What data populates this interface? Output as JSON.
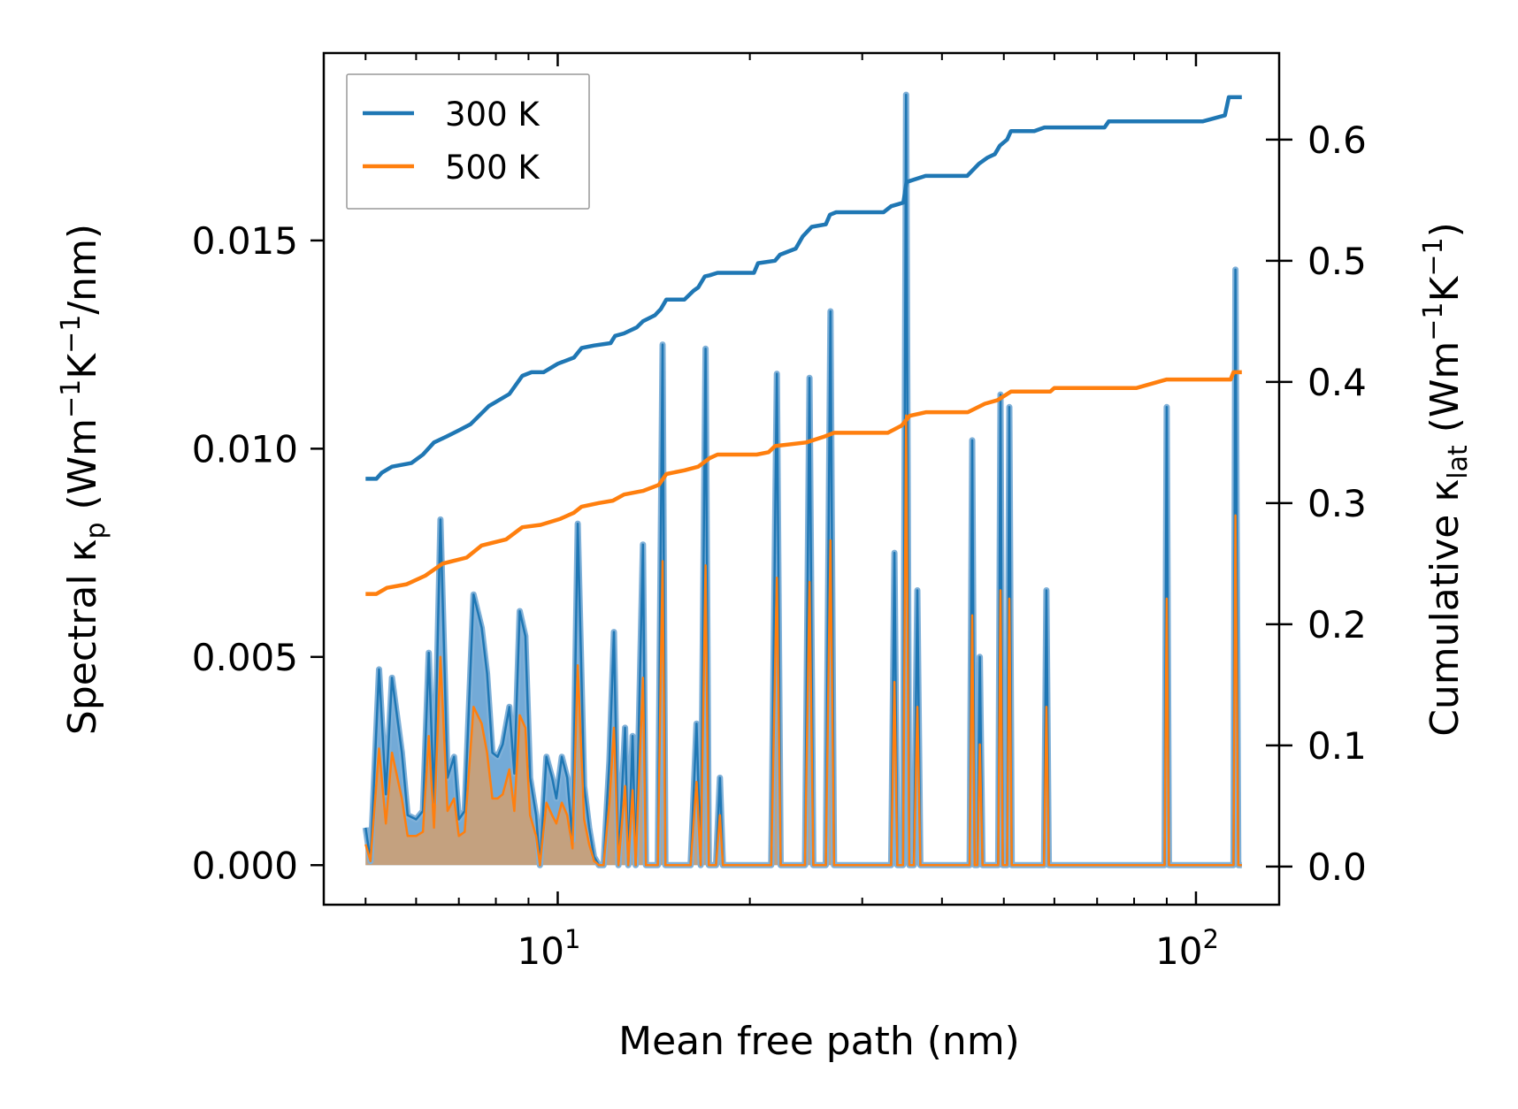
{
  "chart_data": {
    "type": "line",
    "title": "",
    "xlabel": "Mean free path (nm)",
    "ylabel_left": {
      "main": "Spectral κ",
      "sub": "p",
      "units_open": " (Wm",
      "exp1": "−1",
      "mid": "K",
      "exp2": "−1",
      "units_close": "/nm)"
    },
    "ylabel_right": {
      "main": "Cumulative κ",
      "sub": "lat",
      "units_open": " (Wm",
      "exp1": "−1",
      "mid": "K",
      "exp2": "−1",
      "units_close": ")"
    },
    "xscale": "log",
    "xlim": [
      4.3,
      135
    ],
    "ylim_left": [
      -0.00095,
      0.0195
    ],
    "ylim_right": [
      -0.0315,
      0.6714
    ],
    "x_ticks": [
      {
        "value": 10,
        "base": "10",
        "exp": "1"
      },
      {
        "value": 100,
        "base": "10",
        "exp": "2"
      }
    ],
    "left_ticks": [
      {
        "value": 0.0,
        "label": "0.000"
      },
      {
        "value": 0.005,
        "label": "0.005"
      },
      {
        "value": 0.01,
        "label": "0.010"
      },
      {
        "value": 0.015,
        "label": "0.015"
      }
    ],
    "right_ticks": [
      {
        "value": 0.0,
        "label": "0.0"
      },
      {
        "value": 0.1,
        "label": "0.1"
      },
      {
        "value": 0.2,
        "label": "0.2"
      },
      {
        "value": 0.3,
        "label": "0.3"
      },
      {
        "value": 0.4,
        "label": "0.4"
      },
      {
        "value": 0.5,
        "label": "0.5"
      },
      {
        "value": 0.6,
        "label": "0.6"
      }
    ],
    "legend": {
      "location": "upper-left",
      "entries": [
        "300 K",
        "500 K"
      ]
    },
    "colors": {
      "s300": "#1f77b4",
      "s500": "#ff7f0e",
      "s300_fill": "#5b9bd0",
      "s500_fill": "#c8a07a"
    },
    "spectral_300K": [
      [
        5.0,
        0.0009
      ],
      [
        5.09,
        0.0001
      ],
      [
        5.25,
        0.0047
      ],
      [
        5.38,
        0.0017
      ],
      [
        5.5,
        0.0045
      ],
      [
        5.7,
        0.0027
      ],
      [
        5.82,
        0.0012
      ],
      [
        6.0,
        0.0011
      ],
      [
        6.15,
        0.0013
      ],
      [
        6.28,
        0.0051
      ],
      [
        6.4,
        0.0015
      ],
      [
        6.55,
        0.0083
      ],
      [
        6.72,
        0.0021
      ],
      [
        6.88,
        0.0026
      ],
      [
        7.0,
        0.0011
      ],
      [
        7.15,
        0.0013
      ],
      [
        7.38,
        0.0065
      ],
      [
        7.6,
        0.0057
      ],
      [
        7.75,
        0.0046
      ],
      [
        7.9,
        0.0027
      ],
      [
        8.05,
        0.0026
      ],
      [
        8.2,
        0.0029
      ],
      [
        8.4,
        0.0038
      ],
      [
        8.55,
        0.0022
      ],
      [
        8.72,
        0.0061
      ],
      [
        8.9,
        0.0055
      ],
      [
        9.05,
        0.0021
      ],
      [
        9.25,
        0.0012
      ],
      [
        9.38,
        0.0
      ],
      [
        9.6,
        0.0026
      ],
      [
        9.8,
        0.0021
      ],
      [
        9.95,
        0.0016
      ],
      [
        10.15,
        0.0026
      ],
      [
        10.35,
        0.0021
      ],
      [
        10.55,
        0.0006
      ],
      [
        10.75,
        0.0082
      ],
      [
        11.0,
        0.0019
      ],
      [
        11.2,
        0.0009
      ],
      [
        11.4,
        0.0002
      ],
      [
        11.6,
        0.0
      ],
      [
        11.8,
        0.0
      ],
      [
        12.05,
        0.0025
      ],
      [
        12.25,
        0.0056
      ],
      [
        12.45,
        0.0
      ],
      [
        12.75,
        0.0033
      ],
      [
        12.9,
        0.0
      ],
      [
        13.1,
        0.0031
      ],
      [
        13.25,
        0.0
      ],
      [
        13.6,
        0.0077
      ],
      [
        13.75,
        0.0
      ],
      [
        14.05,
        0.0
      ],
      [
        14.35,
        0.0
      ],
      [
        14.6,
        0.0125
      ],
      [
        14.75,
        0.0
      ],
      [
        15.5,
        0.0
      ],
      [
        15.75,
        0.0
      ],
      [
        16.15,
        0.0
      ],
      [
        16.5,
        0.0034
      ],
      [
        16.75,
        0.0
      ],
      [
        17.05,
        0.0124
      ],
      [
        17.25,
        0.0
      ],
      [
        17.7,
        0.0
      ],
      [
        17.95,
        0.0021
      ],
      [
        18.15,
        0.0
      ],
      [
        18.5,
        0.0
      ],
      [
        19.5,
        0.0
      ],
      [
        20.9,
        0.0
      ],
      [
        21.6,
        0.0
      ],
      [
        22.05,
        0.0118
      ],
      [
        22.35,
        0.0
      ],
      [
        23.0,
        0.0
      ],
      [
        23.8,
        0.0
      ],
      [
        24.4,
        0.0
      ],
      [
        24.8,
        0.0117
      ],
      [
        25.15,
        0.0
      ],
      [
        25.6,
        0.0
      ],
      [
        26.3,
        0.0
      ],
      [
        26.75,
        0.0133
      ],
      [
        27.1,
        0.0
      ],
      [
        28.5,
        0.0
      ],
      [
        32.0,
        0.0
      ],
      [
        33.3,
        0.0
      ],
      [
        33.7,
        0.0075
      ],
      [
        34.05,
        0.0
      ],
      [
        34.75,
        0.0
      ],
      [
        35.15,
        0.0185
      ],
      [
        35.55,
        0.0
      ],
      [
        36.15,
        0.0
      ],
      [
        36.6,
        0.0066
      ],
      [
        37.0,
        0.0
      ],
      [
        38.2,
        0.0
      ],
      [
        43.5,
        0.0
      ],
      [
        44.2,
        0.0
      ],
      [
        44.6,
        0.0102
      ],
      [
        45.0,
        0.0
      ],
      [
        45.45,
        0.0
      ],
      [
        45.85,
        0.005
      ],
      [
        46.3,
        0.0
      ],
      [
        48.2,
        0.0
      ],
      [
        49.0,
        0.0
      ],
      [
        49.4,
        0.0113
      ],
      [
        49.8,
        0.0
      ],
      [
        50.6,
        0.0
      ],
      [
        51.0,
        0.011
      ],
      [
        51.45,
        0.0
      ],
      [
        57.0,
        0.0
      ],
      [
        57.8,
        0.0
      ],
      [
        58.3,
        0.0066
      ],
      [
        58.8,
        0.0
      ],
      [
        70.0,
        0.0
      ],
      [
        88.0,
        0.0
      ],
      [
        89.3,
        0.0
      ],
      [
        90.0,
        0.011
      ],
      [
        90.7,
        0.0
      ],
      [
        106.0,
        0.0
      ],
      [
        114.5,
        0.0
      ],
      [
        115.3,
        0.0143
      ],
      [
        116.5,
        0.0
      ],
      [
        118.0,
        0.0
      ]
    ],
    "spectral_500K": [
      [
        5.0,
        0.0005
      ],
      [
        5.09,
        0.0001
      ],
      [
        5.25,
        0.0028
      ],
      [
        5.38,
        0.001
      ],
      [
        5.5,
        0.0027
      ],
      [
        5.7,
        0.0016
      ],
      [
        5.82,
        0.0007
      ],
      [
        6.0,
        0.0007
      ],
      [
        6.15,
        0.0008
      ],
      [
        6.28,
        0.0031
      ],
      [
        6.4,
        0.0009
      ],
      [
        6.55,
        0.005
      ],
      [
        6.72,
        0.0013
      ],
      [
        6.88,
        0.0016
      ],
      [
        7.0,
        0.0007
      ],
      [
        7.15,
        0.0008
      ],
      [
        7.38,
        0.0038
      ],
      [
        7.6,
        0.0034
      ],
      [
        7.75,
        0.0027
      ],
      [
        7.9,
        0.0016
      ],
      [
        8.05,
        0.0016
      ],
      [
        8.2,
        0.0017
      ],
      [
        8.4,
        0.0023
      ],
      [
        8.55,
        0.0013
      ],
      [
        8.72,
        0.0036
      ],
      [
        8.9,
        0.0033
      ],
      [
        9.05,
        0.0012
      ],
      [
        9.25,
        0.0007
      ],
      [
        9.38,
        0.0
      ],
      [
        9.6,
        0.0015
      ],
      [
        9.8,
        0.0012
      ],
      [
        9.95,
        0.001
      ],
      [
        10.15,
        0.0015
      ],
      [
        10.35,
        0.0012
      ],
      [
        10.55,
        0.0004
      ],
      [
        10.75,
        0.0048
      ],
      [
        11.0,
        0.0011
      ],
      [
        11.2,
        0.0005
      ],
      [
        11.4,
        0.0001
      ],
      [
        11.6,
        0.0
      ],
      [
        11.8,
        0.0
      ],
      [
        12.05,
        0.0015
      ],
      [
        12.25,
        0.0033
      ],
      [
        12.45,
        0.0
      ],
      [
        12.75,
        0.0019
      ],
      [
        12.9,
        0.0
      ],
      [
        13.1,
        0.0018
      ],
      [
        13.25,
        0.0
      ],
      [
        13.6,
        0.0045
      ],
      [
        13.75,
        0.0
      ],
      [
        14.05,
        0.0
      ],
      [
        14.35,
        0.0
      ],
      [
        14.6,
        0.0073
      ],
      [
        14.75,
        0.0
      ],
      [
        15.5,
        0.0
      ],
      [
        15.75,
        0.0
      ],
      [
        16.15,
        0.0
      ],
      [
        16.5,
        0.002
      ],
      [
        16.75,
        0.0
      ],
      [
        17.05,
        0.0072
      ],
      [
        17.25,
        0.0
      ],
      [
        17.7,
        0.0
      ],
      [
        17.95,
        0.0012
      ],
      [
        18.15,
        0.0
      ],
      [
        18.5,
        0.0
      ],
      [
        19.5,
        0.0
      ],
      [
        20.9,
        0.0
      ],
      [
        21.6,
        0.0
      ],
      [
        22.05,
        0.0069
      ],
      [
        22.35,
        0.0
      ],
      [
        23.0,
        0.0
      ],
      [
        23.8,
        0.0
      ],
      [
        24.4,
        0.0
      ],
      [
        24.8,
        0.0068
      ],
      [
        25.15,
        0.0
      ],
      [
        25.6,
        0.0
      ],
      [
        26.3,
        0.0
      ],
      [
        26.75,
        0.0078
      ],
      [
        27.1,
        0.0
      ],
      [
        28.5,
        0.0
      ],
      [
        32.0,
        0.0
      ],
      [
        33.3,
        0.0
      ],
      [
        33.7,
        0.0044
      ],
      [
        34.05,
        0.0
      ],
      [
        34.75,
        0.0
      ],
      [
        35.15,
        0.0108
      ],
      [
        35.55,
        0.0
      ],
      [
        36.15,
        0.0
      ],
      [
        36.6,
        0.0038
      ],
      [
        37.0,
        0.0
      ],
      [
        38.2,
        0.0
      ],
      [
        43.5,
        0.0
      ],
      [
        44.2,
        0.0
      ],
      [
        44.6,
        0.006
      ],
      [
        45.0,
        0.0
      ],
      [
        45.45,
        0.0
      ],
      [
        45.85,
        0.0029
      ],
      [
        46.3,
        0.0
      ],
      [
        48.2,
        0.0
      ],
      [
        49.0,
        0.0
      ],
      [
        49.4,
        0.0066
      ],
      [
        49.8,
        0.0
      ],
      [
        50.6,
        0.0
      ],
      [
        51.0,
        0.0064
      ],
      [
        51.45,
        0.0
      ],
      [
        57.0,
        0.0
      ],
      [
        57.8,
        0.0
      ],
      [
        58.3,
        0.0038
      ],
      [
        58.8,
        0.0
      ],
      [
        70.0,
        0.0
      ],
      [
        88.0,
        0.0
      ],
      [
        89.3,
        0.0
      ],
      [
        90.0,
        0.0064
      ],
      [
        90.7,
        0.0
      ],
      [
        106.0,
        0.0
      ],
      [
        114.5,
        0.0
      ],
      [
        115.3,
        0.0084
      ],
      [
        116.5,
        0.0
      ],
      [
        118.0,
        0.0
      ]
    ],
    "cumulative_300K": [
      [
        5.0,
        0.32
      ],
      [
        5.2,
        0.32
      ],
      [
        5.3,
        0.325
      ],
      [
        5.5,
        0.33
      ],
      [
        5.9,
        0.333
      ],
      [
        6.15,
        0.34
      ],
      [
        6.4,
        0.35
      ],
      [
        6.7,
        0.355
      ],
      [
        7.0,
        0.36
      ],
      [
        7.3,
        0.365
      ],
      [
        7.8,
        0.38
      ],
      [
        8.4,
        0.39
      ],
      [
        8.8,
        0.405
      ],
      [
        9.1,
        0.408
      ],
      [
        9.5,
        0.408
      ],
      [
        10.0,
        0.415
      ],
      [
        10.6,
        0.42
      ],
      [
        10.9,
        0.428
      ],
      [
        11.4,
        0.43
      ],
      [
        12.1,
        0.432
      ],
      [
        12.3,
        0.438
      ],
      [
        12.7,
        0.44
      ],
      [
        13.3,
        0.445
      ],
      [
        13.6,
        0.45
      ],
      [
        14.2,
        0.455
      ],
      [
        14.5,
        0.46
      ],
      [
        14.8,
        0.468
      ],
      [
        15.8,
        0.468
      ],
      [
        16.3,
        0.475
      ],
      [
        16.6,
        0.478
      ],
      [
        17.0,
        0.487
      ],
      [
        17.3,
        0.488
      ],
      [
        17.8,
        0.49
      ],
      [
        19.4,
        0.49
      ],
      [
        20.3,
        0.49
      ],
      [
        20.6,
        0.498
      ],
      [
        21.9,
        0.5
      ],
      [
        22.3,
        0.505
      ],
      [
        23.6,
        0.51
      ],
      [
        24.2,
        0.52
      ],
      [
        25.0,
        0.528
      ],
      [
        26.3,
        0.53
      ],
      [
        26.7,
        0.538
      ],
      [
        27.3,
        0.54
      ],
      [
        32.4,
        0.54
      ],
      [
        33.3,
        0.545
      ],
      [
        34.8,
        0.548
      ],
      [
        35.2,
        0.565
      ],
      [
        37.7,
        0.57
      ],
      [
        43.8,
        0.57
      ],
      [
        45.7,
        0.58
      ],
      [
        47.1,
        0.585
      ],
      [
        48.4,
        0.588
      ],
      [
        49.3,
        0.595
      ],
      [
        50.6,
        0.6
      ],
      [
        51.3,
        0.607
      ],
      [
        55.8,
        0.607
      ],
      [
        57.9,
        0.61
      ],
      [
        71.9,
        0.61
      ],
      [
        73.0,
        0.615
      ],
      [
        102.4,
        0.615
      ],
      [
        111.0,
        0.62
      ],
      [
        112.6,
        0.635
      ],
      [
        118.0,
        0.635
      ]
    ],
    "cumulative_500K": [
      [
        5.0,
        0.225
      ],
      [
        5.2,
        0.225
      ],
      [
        5.4,
        0.23
      ],
      [
        5.8,
        0.233
      ],
      [
        6.2,
        0.24
      ],
      [
        6.6,
        0.25
      ],
      [
        7.2,
        0.255
      ],
      [
        7.6,
        0.265
      ],
      [
        8.3,
        0.27
      ],
      [
        8.8,
        0.28
      ],
      [
        9.4,
        0.282
      ],
      [
        10.1,
        0.287
      ],
      [
        10.6,
        0.292
      ],
      [
        10.9,
        0.297
      ],
      [
        11.6,
        0.3
      ],
      [
        12.2,
        0.302
      ],
      [
        12.7,
        0.307
      ],
      [
        13.6,
        0.31
      ],
      [
        14.4,
        0.315
      ],
      [
        14.8,
        0.324
      ],
      [
        15.8,
        0.327
      ],
      [
        16.6,
        0.33
      ],
      [
        17.3,
        0.337
      ],
      [
        17.8,
        0.34
      ],
      [
        20.5,
        0.34
      ],
      [
        21.4,
        0.342
      ],
      [
        21.9,
        0.347
      ],
      [
        24.5,
        0.35
      ],
      [
        26.2,
        0.355
      ],
      [
        27.1,
        0.358
      ],
      [
        32.9,
        0.358
      ],
      [
        34.6,
        0.364
      ],
      [
        35.6,
        0.372
      ],
      [
        37.8,
        0.375
      ],
      [
        43.9,
        0.375
      ],
      [
        46.7,
        0.382
      ],
      [
        48.9,
        0.385
      ],
      [
        51.3,
        0.392
      ],
      [
        59.1,
        0.392
      ],
      [
        60.0,
        0.395
      ],
      [
        80.7,
        0.395
      ],
      [
        90.0,
        0.402
      ],
      [
        113.3,
        0.402
      ],
      [
        114.5,
        0.408
      ],
      [
        118.0,
        0.408
      ]
    ]
  }
}
